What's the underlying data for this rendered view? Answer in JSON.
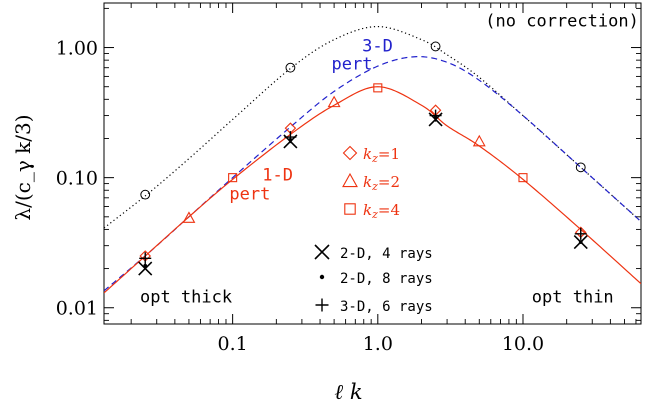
{
  "chart_data": {
    "type": "line",
    "xlabel": "ℓ k",
    "ylabel": "λ/(c_γ k/3)",
    "x_scale": "log",
    "y_scale": "log",
    "xlim": [
      0.013,
      65
    ],
    "ylim": [
      0.0075,
      2.2
    ],
    "x_ticks": [
      {
        "value": 0.1,
        "label": "0.1"
      },
      {
        "value": 1.0,
        "label": "1.0"
      },
      {
        "value": 10.0,
        "label": "10.0"
      }
    ],
    "y_ticks": [
      {
        "value": 0.01,
        "label": "0.01"
      },
      {
        "value": 0.1,
        "label": "0.10"
      },
      {
        "value": 1.0,
        "label": "1.00"
      }
    ],
    "grid": false,
    "series": [
      {
        "name": "(no correction)",
        "style": "dotted",
        "color": "#000000",
        "x": [
          0.013,
          0.026,
          0.05,
          0.1,
          0.25,
          0.5,
          1.0,
          2.0,
          3.0,
          5.0,
          10.0,
          25.0,
          65.0
        ],
        "y": [
          0.041,
          0.075,
          0.14,
          0.28,
          0.69,
          1.15,
          1.45,
          1.15,
          0.88,
          0.59,
          0.3,
          0.12,
          0.046
        ]
      },
      {
        "name": "3-D pert",
        "style": "dashed",
        "color": "#2222cc",
        "x": [
          0.013,
          0.026,
          0.05,
          0.1,
          0.25,
          0.5,
          1.0,
          1.8,
          3.0,
          5.0,
          10.0,
          25.0,
          65.0
        ],
        "y": [
          0.0135,
          0.026,
          0.05,
          0.1,
          0.245,
          0.46,
          0.72,
          0.85,
          0.77,
          0.56,
          0.3,
          0.12,
          0.046
        ]
      },
      {
        "name": "1-D pert",
        "style": "solid",
        "color": "#ee3311",
        "x": [
          0.013,
          0.026,
          0.05,
          0.1,
          0.25,
          0.5,
          1.0,
          2.0,
          3.0,
          5.0,
          10.0,
          25.0,
          65.0
        ],
        "y": [
          0.013,
          0.026,
          0.05,
          0.097,
          0.215,
          0.36,
          0.5,
          0.36,
          0.25,
          0.175,
          0.097,
          0.04,
          0.0153
        ]
      }
    ],
    "markers": [
      {
        "name": "k_z=1",
        "shape": "diamond",
        "color": "#ee3311",
        "x": [
          0.025,
          0.25,
          2.5,
          25.0
        ],
        "y": [
          0.025,
          0.24,
          0.33,
          0.038
        ]
      },
      {
        "name": "k_z=2",
        "shape": "triangle",
        "color": "#ee3311",
        "x": [
          0.05,
          0.5,
          5.0
        ],
        "y": [
          0.049,
          0.38,
          0.19
        ]
      },
      {
        "name": "k_z=4",
        "shape": "square",
        "color": "#ee3311",
        "x": [
          0.1,
          1.0,
          10.0
        ],
        "y": [
          0.1,
          0.49,
          0.1
        ]
      },
      {
        "name": "2-D, 4 rays",
        "shape": "x",
        "color": "#000000",
        "x": [
          0.025,
          0.25,
          2.5,
          25.0
        ],
        "y": [
          0.02,
          0.19,
          0.28,
          0.032
        ]
      },
      {
        "name": "2-D, 8 rays",
        "shape": "dot",
        "color": "#000000",
        "x": [
          0.025,
          0.25,
          2.5,
          25.0
        ],
        "y": [
          0.021,
          0.195,
          0.29,
          0.032
        ]
      },
      {
        "name": "3-D, 6 rays",
        "shape": "plus",
        "color": "#000000",
        "x": [
          0.025,
          0.25,
          2.5,
          25.0
        ],
        "y": [
          0.024,
          0.205,
          0.3,
          0.037
        ]
      },
      {
        "name": "no correction points",
        "shape": "circle",
        "color": "#000000",
        "x": [
          0.025,
          0.25,
          2.5,
          25.0
        ],
        "y": [
          0.074,
          0.7,
          1.02,
          0.12
        ]
      }
    ],
    "annotations": [
      {
        "text": "(no correction)",
        "x": 5.5,
        "y": 1.45,
        "color": "#000000"
      },
      {
        "text": "3-D",
        "x": 0.78,
        "y": 0.93,
        "color": "#2222cc"
      },
      {
        "text": "pert",
        "x": 0.48,
        "y": 0.68,
        "color": "#2222cc"
      },
      {
        "text": "1-D",
        "x": 0.16,
        "y": 0.095,
        "color": "#ee3311"
      },
      {
        "text": "pert",
        "x": 0.095,
        "y": 0.068,
        "color": "#ee3311"
      },
      {
        "text": "opt thick",
        "x": 0.023,
        "y": 0.011,
        "color": "#000000"
      },
      {
        "text": "opt thin",
        "x": 11.5,
        "y": 0.011,
        "color": "#000000"
      }
    ],
    "legend_entries": [
      {
        "sub": "z",
        "val": "=1",
        "shape": "diamond",
        "color": "#ee3311"
      },
      {
        "sub": "z",
        "val": "=2",
        "shape": "triangle",
        "color": "#ee3311"
      },
      {
        "sub": "z",
        "val": "=4",
        "shape": "square",
        "color": "#ee3311"
      },
      {
        "text": "2-D, 4 rays",
        "shape": "x",
        "color": "#000000"
      },
      {
        "text": "2-D, 8 rays",
        "shape": "dot",
        "color": "#000000"
      },
      {
        "text": "3-D, 6 rays",
        "shape": "plus",
        "color": "#000000"
      }
    ]
  }
}
